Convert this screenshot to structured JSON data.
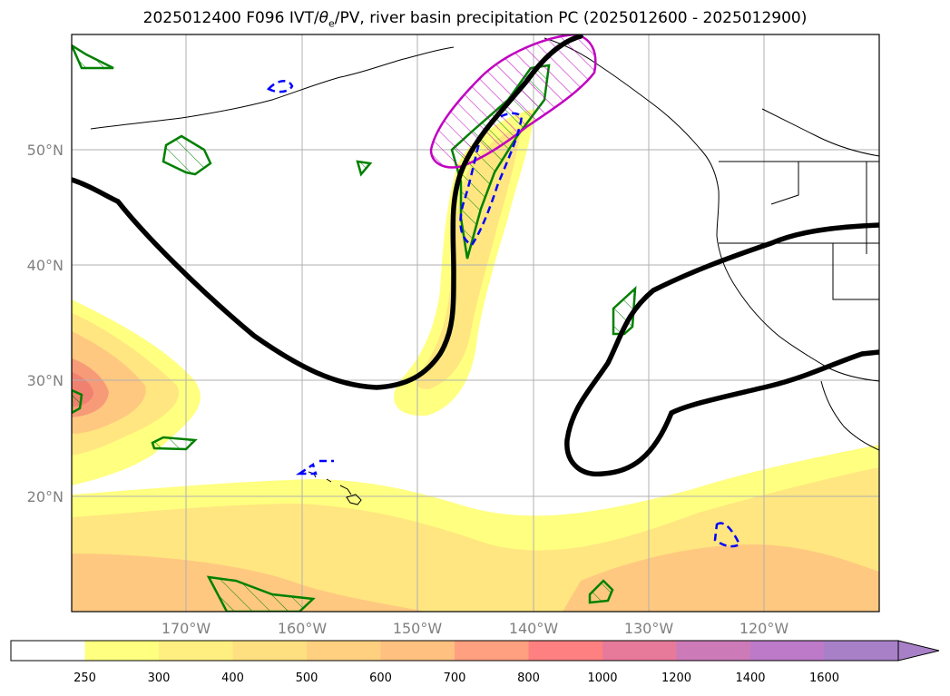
{
  "title": {
    "run": "2025012400 F096 IVT/",
    "theta": "θ",
    "theta_sub": "e",
    "rest": "/PV, river basin precipitation PC (2025012600 - 2025012900)"
  },
  "map": {
    "lat_labels": [
      "50°N",
      "40°N",
      "30°N",
      "20°N"
    ],
    "lon_labels": [
      "170°W",
      "160°W",
      "150°W",
      "140°W",
      "130°W",
      "120°W"
    ]
  },
  "colorbar": {
    "labels": [
      "250",
      "300",
      "400",
      "500",
      "600",
      "700",
      "800",
      "1000",
      "1200",
      "1400",
      "1600"
    ],
    "colors": [
      "#ffffff",
      "#ffff80",
      "#ffef80",
      "#ffe080",
      "#ffd080",
      "#ffc080",
      "#ffa080",
      "#ff8080",
      "#e77a9a",
      "#cc7ab8",
      "#bc7ac8",
      "#a880c8"
    ]
  },
  "colors": {
    "ivt_light": "#ffff80",
    "ivt_mid": "#ffe680",
    "ivt_orange": "#ffc880",
    "ivt_core": "#f79a78",
    "pv_line": "#000000",
    "green_contour": "#008000",
    "blue_contour": "#0000ff",
    "magenta_contour": "#c000c0",
    "grid": "#b0b0b0"
  }
}
